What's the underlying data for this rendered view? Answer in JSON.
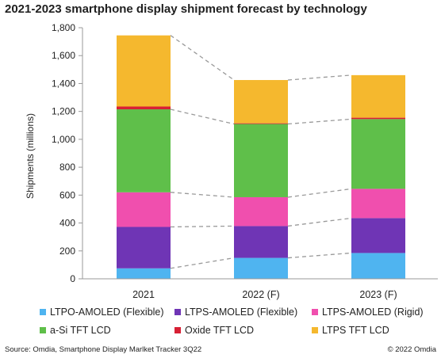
{
  "chart_data": {
    "type": "bar",
    "stacked": true,
    "title": "2021-2023 smartphone display shipment forecast by technology",
    "ylabel": "Shipments (millions)",
    "xlabel": "",
    "ylim": [
      0,
      1800
    ],
    "yticks": [
      "0",
      "200",
      "400",
      "600",
      "800",
      "1,000",
      "1,200",
      "1,400",
      "1,600",
      "1,800"
    ],
    "categories": [
      "2021",
      "2022 (F)",
      "2023 (F)"
    ],
    "grid": false,
    "legend_position": "bottom",
    "connector_lines": "dashed",
    "series": [
      {
        "name": "LTPO-AMOLED (Flexible)",
        "color": "#4fb4f0",
        "values": [
          75,
          150,
          185
        ]
      },
      {
        "name": "LTPS-AMOLED (Flexible)",
        "color": "#6f35b5",
        "values": [
          297,
          228,
          250
        ]
      },
      {
        "name": "LTPS-AMOLED (Rigid)",
        "color": "#f04fae",
        "values": [
          248,
          207,
          210
        ]
      },
      {
        "name": "a-Si TFT LCD",
        "color": "#5fbf4a",
        "values": [
          595,
          525,
          500
        ]
      },
      {
        "name": "Oxide TFT LCD",
        "color": "#d72035",
        "values": [
          20,
          5,
          10
        ]
      },
      {
        "name": "LTPS TFT LCD",
        "color": "#f5b82e",
        "values": [
          510,
          310,
          305
        ]
      }
    ]
  },
  "footer": {
    "source": "Source: Omdia, Smartphone Display Marlket Tracker 3Q22",
    "copyright": "© 2022 Omdia"
  }
}
